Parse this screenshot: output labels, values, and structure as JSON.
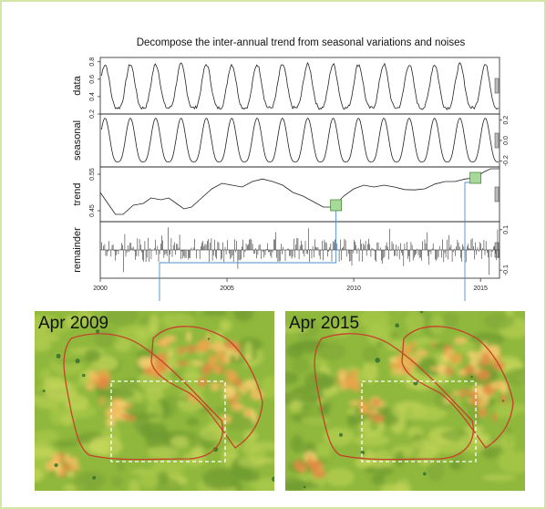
{
  "chart_data": {
    "type": "line",
    "title": "Decompose the inter-annual trend from seasonal variations and noises",
    "x_ticks": [
      2000,
      2005,
      2010,
      2015
    ],
    "xlim": [
      2000.0,
      2015.75
    ],
    "panels": [
      {
        "name": "data",
        "ylim": [
          0.2,
          0.85
        ],
        "ticks": [
          0.2,
          0.4,
          0.6,
          0.8
        ],
        "tick_labels": [
          "0.2",
          "0.4",
          "0.6",
          "0.8"
        ],
        "tick_side": "left"
      },
      {
        "name": "seasonal",
        "ylim": [
          -0.26,
          0.26
        ],
        "ticks": [
          0.2,
          0.0,
          -0.2
        ],
        "tick_labels": [
          "0.2",
          "0.0",
          "-0.2"
        ],
        "tick_side": "right"
      },
      {
        "name": "trend",
        "ylim": [
          0.42,
          0.57
        ],
        "ticks": [
          0.55,
          0.45
        ],
        "tick_labels": [
          "0.55",
          "0.45"
        ],
        "tick_side": "left"
      },
      {
        "name": "remainder",
        "ylim": [
          -0.14,
          0.14
        ],
        "ticks": [
          0.1,
          -0.1
        ],
        "tick_labels": [
          "0.1",
          "-0.1"
        ],
        "tick_side": "right"
      }
    ],
    "trend_points": [
      [
        2000.0,
        0.5
      ],
      [
        2000.3,
        0.47
      ],
      [
        2000.6,
        0.44
      ],
      [
        2000.9,
        0.44
      ],
      [
        2001.3,
        0.465
      ],
      [
        2001.7,
        0.47
      ],
      [
        2002.0,
        0.485
      ],
      [
        2002.4,
        0.48
      ],
      [
        2002.7,
        0.485
      ],
      [
        2003.0,
        0.47
      ],
      [
        2003.3,
        0.455
      ],
      [
        2003.6,
        0.46
      ],
      [
        2004.0,
        0.485
      ],
      [
        2004.4,
        0.51
      ],
      [
        2004.8,
        0.525
      ],
      [
        2005.2,
        0.52
      ],
      [
        2005.6,
        0.515
      ],
      [
        2006.0,
        0.53
      ],
      [
        2006.4,
        0.537
      ],
      [
        2006.8,
        0.53
      ],
      [
        2007.2,
        0.52
      ],
      [
        2007.6,
        0.5
      ],
      [
        2008.0,
        0.49
      ],
      [
        2008.4,
        0.475
      ],
      [
        2008.8,
        0.46
      ],
      [
        2009.2,
        0.46
      ],
      [
        2009.6,
        0.49
      ],
      [
        2010.0,
        0.51
      ],
      [
        2010.4,
        0.52
      ],
      [
        2010.8,
        0.515
      ],
      [
        2011.2,
        0.52
      ],
      [
        2011.6,
        0.515
      ],
      [
        2012.0,
        0.508
      ],
      [
        2012.4,
        0.507
      ],
      [
        2012.8,
        0.51
      ],
      [
        2013.2,
        0.523
      ],
      [
        2013.6,
        0.53
      ],
      [
        2014.0,
        0.53
      ],
      [
        2014.4,
        0.537
      ],
      [
        2014.8,
        0.54
      ],
      [
        2015.1,
        0.555
      ],
      [
        2015.4,
        0.565
      ],
      [
        2015.75,
        0.565
      ]
    ],
    "highlights": [
      {
        "panel": "trend",
        "x": 2009.3,
        "y": 0.465,
        "color": "#a6d99a"
      },
      {
        "panel": "trend",
        "x": 2014.8,
        "y": 0.54,
        "color": "#a6d99a"
      }
    ]
  },
  "maps": [
    {
      "label": "Apr 2009",
      "hot": 1.0
    },
    {
      "label": "Apr 2015",
      "hot": 0.8
    }
  ]
}
